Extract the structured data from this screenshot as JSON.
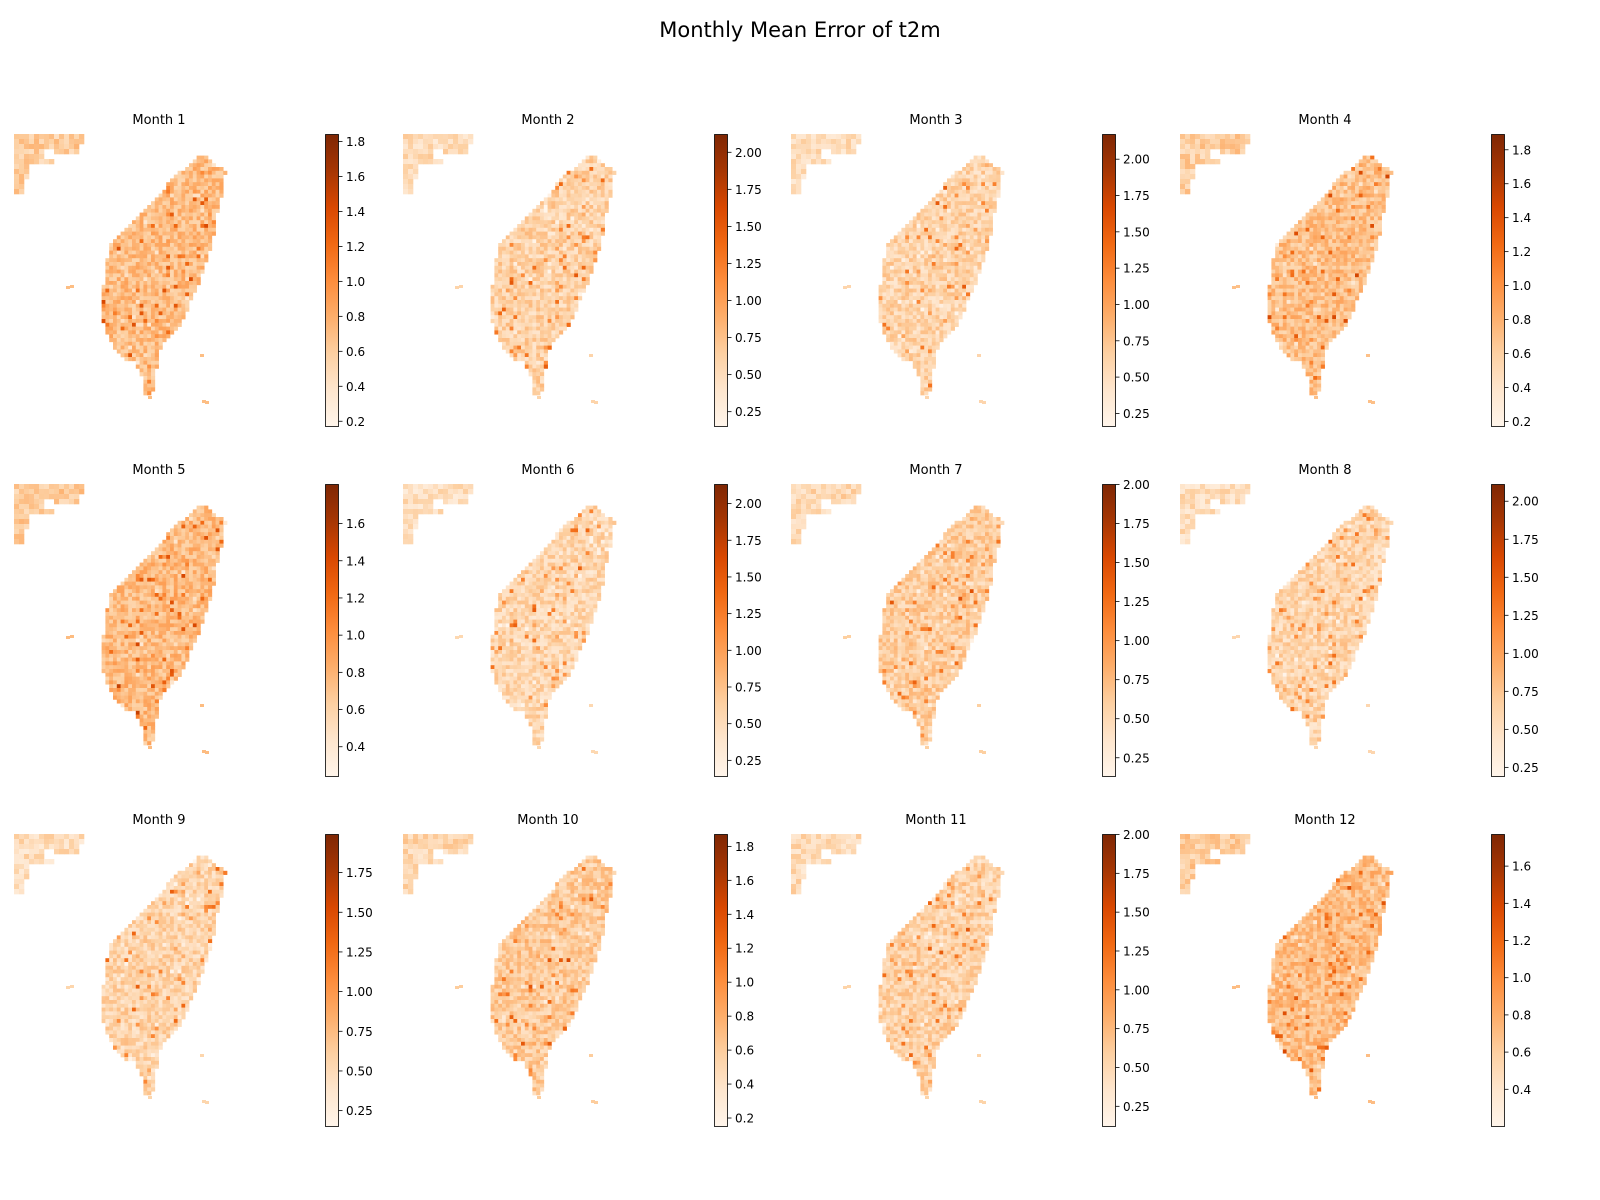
{
  "figure": {
    "title": "Monthly Mean Error of t2m",
    "colormap": "Oranges",
    "colormap_stops": [
      "#fff5eb",
      "#fee6ce",
      "#fdd0a2",
      "#fdae6b",
      "#fd8d3c",
      "#f16913",
      "#d94801",
      "#a63603",
      "#7f2704"
    ]
  },
  "chart_data": [
    {
      "type": "heatmap",
      "title": "Month 1",
      "colorbar_range": [
        0.17,
        1.84
      ],
      "colorbar_ticks": [
        "0.2",
        "0.4",
        "0.6",
        "0.8",
        "1.0",
        "1.2",
        "1.4",
        "1.6",
        "1.8"
      ],
      "typical_value": 0.7
    },
    {
      "type": "heatmap",
      "title": "Month 2",
      "colorbar_range": [
        0.15,
        2.12
      ],
      "colorbar_ticks": [
        "0.25",
        "0.50",
        "0.75",
        "1.00",
        "1.25",
        "1.50",
        "1.75",
        "2.00"
      ],
      "typical_value": 0.6
    },
    {
      "type": "heatmap",
      "title": "Month 3",
      "colorbar_range": [
        0.16,
        2.17
      ],
      "colorbar_ticks": [
        "0.25",
        "0.50",
        "0.75",
        "1.00",
        "1.25",
        "1.50",
        "1.75",
        "2.00"
      ],
      "typical_value": 0.6
    },
    {
      "type": "heatmap",
      "title": "Month 4",
      "colorbar_range": [
        0.17,
        1.89
      ],
      "colorbar_ticks": [
        "0.2",
        "0.4",
        "0.6",
        "0.8",
        "1.0",
        "1.2",
        "1.4",
        "1.6",
        "1.8"
      ],
      "typical_value": 0.7
    },
    {
      "type": "heatmap",
      "title": "Month 5",
      "colorbar_range": [
        0.24,
        1.81
      ],
      "colorbar_ticks": [
        "0.4",
        "0.6",
        "0.8",
        "1.0",
        "1.2",
        "1.4",
        "1.6"
      ],
      "typical_value": 0.75
    },
    {
      "type": "heatmap",
      "title": "Month 6",
      "colorbar_range": [
        0.14,
        2.13
      ],
      "colorbar_ticks": [
        "0.25",
        "0.50",
        "0.75",
        "1.00",
        "1.25",
        "1.50",
        "1.75",
        "2.00"
      ],
      "typical_value": 0.55
    },
    {
      "type": "heatmap",
      "title": "Month 7",
      "colorbar_range": [
        0.13,
        2.0
      ],
      "colorbar_ticks": [
        "0.25",
        "0.50",
        "0.75",
        "1.00",
        "1.25",
        "1.50",
        "1.75",
        "2.00"
      ],
      "typical_value": 0.6
    },
    {
      "type": "heatmap",
      "title": "Month 8",
      "colorbar_range": [
        0.19,
        2.11
      ],
      "colorbar_ticks": [
        "0.25",
        "0.50",
        "0.75",
        "1.00",
        "1.25",
        "1.50",
        "1.75",
        "2.00"
      ],
      "typical_value": 0.6
    },
    {
      "type": "heatmap",
      "title": "Month 9",
      "colorbar_range": [
        0.15,
        1.99
      ],
      "colorbar_ticks": [
        "0.25",
        "0.50",
        "0.75",
        "1.00",
        "1.25",
        "1.50",
        "1.75"
      ],
      "typical_value": 0.55
    },
    {
      "type": "heatmap",
      "title": "Month 10",
      "colorbar_range": [
        0.15,
        1.87
      ],
      "colorbar_ticks": [
        "0.2",
        "0.4",
        "0.6",
        "0.8",
        "1.0",
        "1.2",
        "1.4",
        "1.6",
        "1.8"
      ],
      "typical_value": 0.6
    },
    {
      "type": "heatmap",
      "title": "Month 11",
      "colorbar_range": [
        0.12,
        2.0
      ],
      "colorbar_ticks": [
        "0.25",
        "0.50",
        "0.75",
        "1.00",
        "1.25",
        "1.50",
        "1.75",
        "2.00"
      ],
      "typical_value": 0.55
    },
    {
      "type": "heatmap",
      "title": "Month 12",
      "colorbar_range": [
        0.2,
        1.77
      ],
      "colorbar_ticks": [
        "0.4",
        "0.6",
        "0.8",
        "1.0",
        "1.2",
        "1.4",
        "1.6"
      ],
      "typical_value": 0.7
    }
  ]
}
